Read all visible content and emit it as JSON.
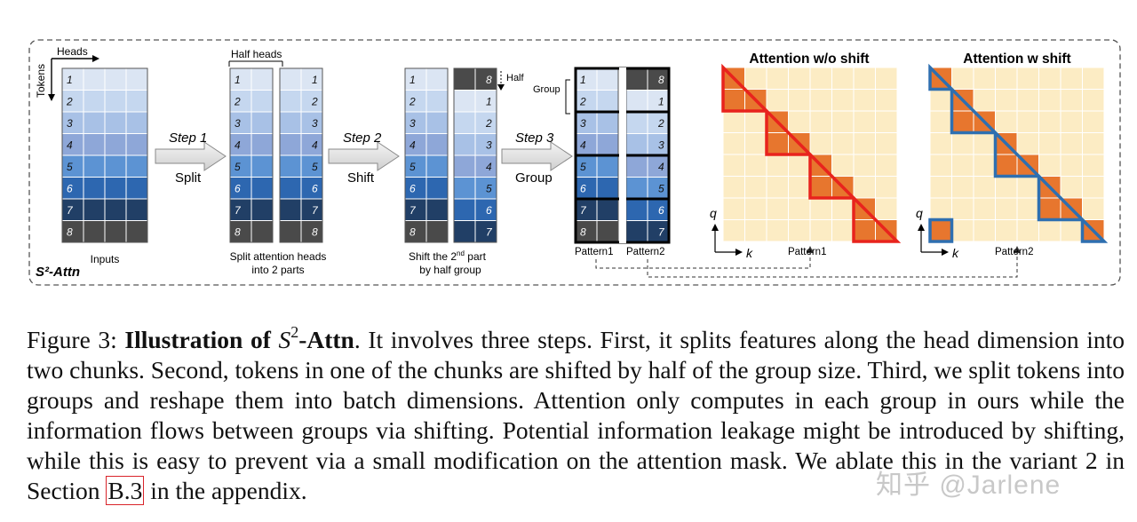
{
  "figure": {
    "label_main": "S²-Attn",
    "heads_label": "Heads",
    "tokens_label": "Tokens",
    "half_heads_label": "Half heads",
    "token_numbers": [
      "1",
      "2",
      "3",
      "4",
      "5",
      "6",
      "7",
      "8"
    ],
    "shifted_numbers": [
      "8",
      "1",
      "2",
      "3",
      "4",
      "5",
      "6",
      "7"
    ],
    "step1": {
      "title": "Step 1",
      "action": "Split"
    },
    "step2": {
      "title": "Step 2",
      "action": "Shift"
    },
    "step3": {
      "title": "Step 3",
      "action": "Group"
    },
    "inputs_caption": "Inputs",
    "split_caption_1": "Split attention heads",
    "split_caption_2": "into 2 parts",
    "shift_caption_1": "Shift the 2",
    "shift_caption_sup": "nd",
    "shift_caption_2": " part",
    "shift_caption_3": "by half group",
    "half_label": "Half",
    "group_label": "Group",
    "pattern1": "Pattern1",
    "pattern2": "Pattern2",
    "attn_noshift_title": "Attention w/o shift",
    "attn_shift_title": "Attention w shift",
    "q_label": "q",
    "k_label": "k",
    "row_colors": [
      "#dbe5f3",
      "#c5d7ef",
      "#a8c1e6",
      "#8ea7d8",
      "#5c93d3",
      "#2d67b0",
      "#213f66",
      "#4a4a4a"
    ],
    "attn_fill": "#fcecc4",
    "attn_block": "#e7762e",
    "red_outline": "#e8231d",
    "blue_outline": "#2e6fb0"
  },
  "caption": {
    "fig": "Figure 3:",
    "title_pre": "Illustration of",
    "S": "S",
    "sup": "2",
    "title_post": "-Attn",
    "body_1": ". It involves three steps. First, it splits features along the head dimension into two chunks. Second, tokens in one of the chunks are shifted by half of the group size. Third, we split tokens into groups and reshape them into batch dimensions. Attention only computes in each group in ours while the information flows between groups via shifting. Potential information leakage might be introduced by shifting, while this is easy to prevent via a small modification on the attention mask. We ablate this in the variant 2 in Section ",
    "ref": "B.3",
    "body_2": " in the appendix."
  },
  "watermark": "知乎 @Jarlene"
}
